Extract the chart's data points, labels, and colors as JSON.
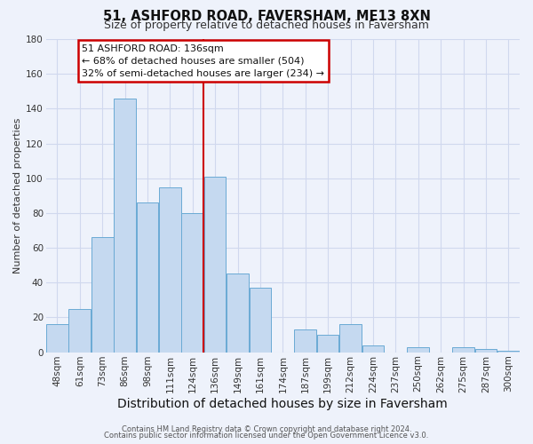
{
  "title": "51, ASHFORD ROAD, FAVERSHAM, ME13 8XN",
  "subtitle": "Size of property relative to detached houses in Faversham",
  "xlabel": "Distribution of detached houses by size in Faversham",
  "ylabel": "Number of detached properties",
  "bar_labels": [
    "48sqm",
    "61sqm",
    "73sqm",
    "86sqm",
    "98sqm",
    "111sqm",
    "124sqm",
    "136sqm",
    "149sqm",
    "161sqm",
    "174sqm",
    "187sqm",
    "199sqm",
    "212sqm",
    "224sqm",
    "237sqm",
    "250sqm",
    "262sqm",
    "275sqm",
    "287sqm",
    "300sqm"
  ],
  "bar_values": [
    16,
    25,
    66,
    146,
    86,
    95,
    80,
    101,
    45,
    37,
    0,
    13,
    10,
    16,
    4,
    0,
    3,
    0,
    3,
    2,
    1
  ],
  "bar_color": "#c5d9f0",
  "bar_edge_color": "#6aaad4",
  "vline_color": "#cc0000",
  "ylim": [
    0,
    180
  ],
  "yticks": [
    0,
    20,
    40,
    60,
    80,
    100,
    120,
    140,
    160,
    180
  ],
  "annotation_title": "51 ASHFORD ROAD: 136sqm",
  "annotation_line1": "← 68% of detached houses are smaller (504)",
  "annotation_line2": "32% of semi-detached houses are larger (234) →",
  "annotation_box_color": "#ffffff",
  "annotation_box_edge": "#cc0000",
  "footer_line1": "Contains HM Land Registry data © Crown copyright and database right 2024.",
  "footer_line2": "Contains public sector information licensed under the Open Government Licence v3.0.",
  "background_color": "#eef2fb",
  "grid_color": "#d0d8ee",
  "title_fontsize": 10.5,
  "subtitle_fontsize": 9,
  "xlabel_fontsize": 10,
  "ylabel_fontsize": 8,
  "tick_fontsize": 7.5,
  "annotation_fontsize": 8,
  "footer_fontsize": 6
}
